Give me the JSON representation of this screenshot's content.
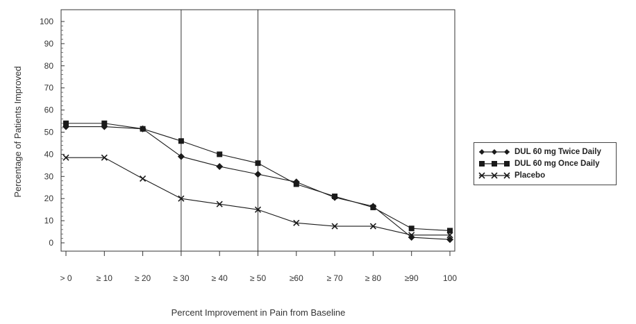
{
  "chart_data": {
    "type": "line",
    "title": "",
    "xlabel": "Percent Improvement in Pain from Baseline",
    "ylabel": "Percentage of Patients Improved",
    "categories": [
      "> 0",
      "≥ 10",
      "≥ 20",
      "≥ 30",
      "≥ 40",
      "≥ 50",
      "≥60",
      "≥ 70",
      "≥ 80",
      "≥90",
      "100"
    ],
    "yticks": [
      0,
      10,
      20,
      30,
      40,
      50,
      60,
      70,
      80,
      90,
      100
    ],
    "ylim": [
      0,
      100
    ],
    "grid": false,
    "reference_lines_at": [
      "≥ 30",
      "≥ 50"
    ],
    "legend_position": "right",
    "series": [
      {
        "name": "DUL 60 mg Twice Daily",
        "marker": "diamond",
        "color": "#1a1a1a",
        "values": [
          52.5,
          52.5,
          51.5,
          39,
          34.5,
          31,
          27.5,
          20.5,
          16.5,
          2.5,
          1.5
        ]
      },
      {
        "name": "DUL 60 mg Once Daily",
        "marker": "square",
        "color": "#1a1a1a",
        "values": [
          54,
          54,
          51.5,
          46,
          40,
          36,
          26.5,
          21,
          16,
          6.5,
          5.5
        ]
      },
      {
        "name": "Placebo",
        "marker": "x",
        "color": "#1a1a1a",
        "values": [
          38.5,
          38.5,
          29,
          20,
          17.5,
          15,
          9,
          7.5,
          7.5,
          3.5,
          3.5
        ]
      }
    ]
  }
}
